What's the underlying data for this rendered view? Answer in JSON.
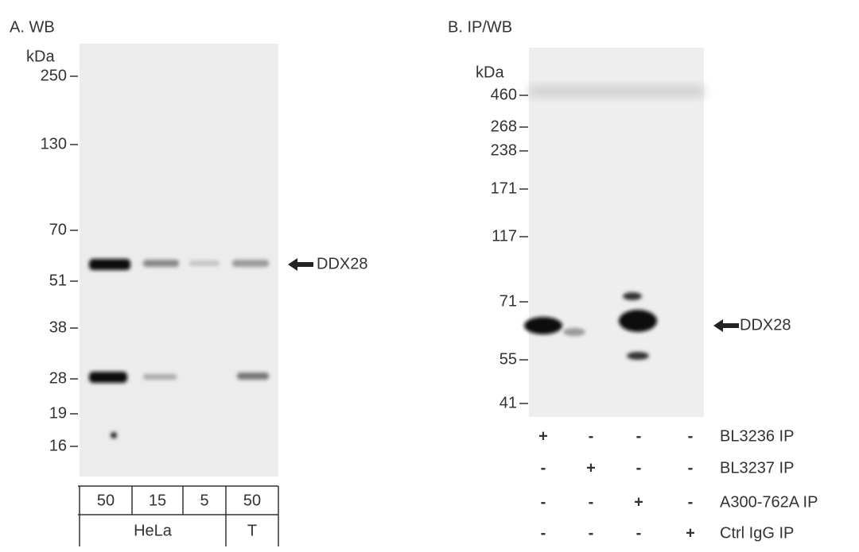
{
  "panel_a": {
    "title": "A. WB",
    "unit": "kDa",
    "markers": [
      "250",
      "130",
      "70",
      "51",
      "38",
      "28",
      "19",
      "16"
    ],
    "target": "DDX28",
    "lane_amounts": [
      "50",
      "15",
      "5",
      "50"
    ],
    "samples": [
      "HeLa",
      "T"
    ]
  },
  "panel_b": {
    "title": "B. IP/WB",
    "unit": "kDa",
    "markers": [
      "460",
      "268",
      "238",
      "171",
      "117",
      "71",
      "55",
      "41"
    ],
    "target": "DDX28",
    "ip_rows": [
      {
        "label": "BL3236 IP",
        "signs": [
          "+",
          "-",
          "-",
          "-"
        ]
      },
      {
        "label": "BL3237 IP",
        "signs": [
          "-",
          "+",
          "-",
          "-"
        ]
      },
      {
        "label": "A300-762A IP",
        "signs": [
          "-",
          "-",
          "+",
          "-"
        ]
      },
      {
        "label": "Ctrl IgG IP",
        "signs": [
          "-",
          "-",
          "-",
          "+"
        ]
      }
    ]
  }
}
